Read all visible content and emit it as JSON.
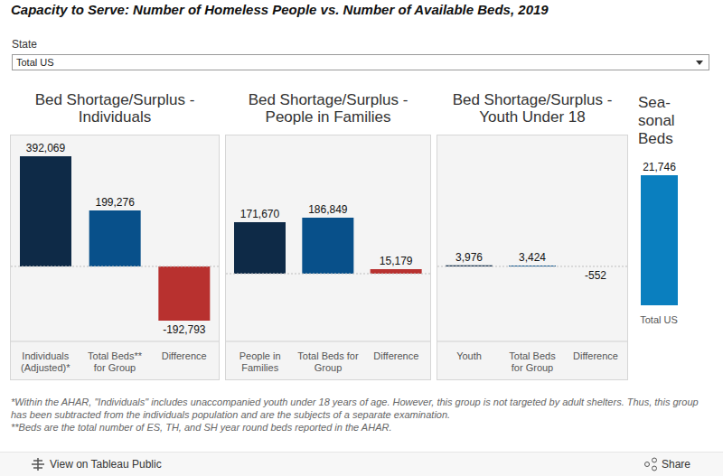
{
  "title": "Capacity to Serve:  Number of Homeless People vs. Number of Available Beds, 2019",
  "filter": {
    "label": "State",
    "value": "Total US"
  },
  "chart_data": [
    {
      "type": "bar",
      "title": "Bed Shortage/Surplus -\nIndividuals",
      "categories": [
        "Individuals\n(Adjusted)*",
        "Total Beds**\nfor Group",
        "Difference"
      ],
      "values": [
        392069,
        199276,
        -192793
      ],
      "value_labels": [
        "392,069",
        "199,276",
        "-192,793"
      ],
      "colors": [
        "#0e2a47",
        "#08508a",
        "#b8312f"
      ],
      "ylim": [
        -267000,
        466000
      ],
      "tick_labels": "x",
      "data_labels": true
    },
    {
      "type": "bar",
      "title": "Bed Shortage/Surplus -\nPeople in Families",
      "categories": [
        "People in\nFamilies",
        "Total Beds for\nGroup",
        "Difference"
      ],
      "values": [
        171670,
        186849,
        15179
      ],
      "value_labels": [
        "171,670",
        "186,849",
        "15,179"
      ],
      "colors": [
        "#0e2a47",
        "#08508a",
        "#b8312f"
      ],
      "ylim": [
        -226000,
        461000
      ],
      "tick_labels": "x",
      "data_labels": true
    },
    {
      "type": "bar",
      "title": "Bed Shortage/Surplus -\nYouth Under 18",
      "categories": [
        "Youth",
        "Total Beds\nfor Group",
        "Difference"
      ],
      "values": [
        3976,
        3424,
        -552
      ],
      "value_labels": [
        "3,976",
        "3,424",
        "-552"
      ],
      "colors": [
        "#0e2a47",
        "#08508a",
        "#b8312f"
      ],
      "ylim": [
        -267000,
        466000
      ],
      "tick_labels": "x",
      "data_labels": true
    },
    {
      "type": "bar",
      "title": "Sea-\nsonal\nBeds",
      "categories": [
        "Total US"
      ],
      "values": [
        21746
      ],
      "value_labels": [
        "21,746"
      ],
      "color": "#0a7fbf",
      "ylim": [
        0,
        28400
      ],
      "tick_labels": "x",
      "data_labels": true
    }
  ],
  "notes": [
    "*Within the AHAR, \"Individuals\" includes unaccompanied youth under 18 years of age.  However, this group is not targeted by adult shelters. Thus, this group has been subtracted from the individuals population and are the subjects of a separate examination.",
    "**Beds are the total number of ES, TH, and SH year round beds reported in the AHAR."
  ],
  "toolbar": [
    "View on Tableau Public",
    "Share"
  ]
}
